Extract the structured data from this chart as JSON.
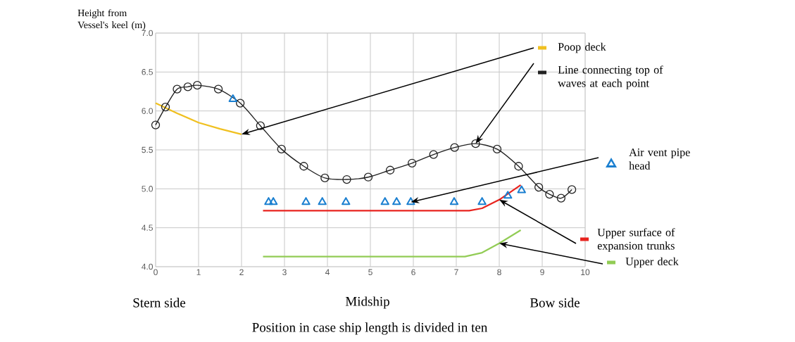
{
  "chart_data": {
    "type": "line",
    "ylabel": "Height from Vessel's keel (m)",
    "xlabel": "Position in case ship length is divided in ten",
    "xlim": [
      0,
      10
    ],
    "ylim": [
      4,
      7
    ],
    "xticks": [
      0,
      1,
      2,
      3,
      4,
      5,
      6,
      7,
      8,
      9,
      10
    ],
    "yticks": [
      {
        "value": 4,
        "label": "4.0"
      },
      {
        "value": 4.5,
        "label": "4.5"
      },
      {
        "value": 5,
        "label": "5.0"
      },
      {
        "value": 5.5,
        "label": "5.5"
      },
      {
        "value": 6,
        "label": "6.0"
      },
      {
        "value": 6.5,
        "label": "6.5"
      },
      {
        "value": 7,
        "label": "7.0"
      }
    ],
    "grid": true,
    "legend": "right",
    "series": [
      {
        "name": "Poop deck",
        "color": "#f0c020",
        "x": [
          0,
          0.5,
          1,
          1.5,
          2
        ],
        "values": [
          6.1,
          5.97,
          5.85,
          5.77,
          5.7
        ]
      },
      {
        "name": "Line connecting top of waves at each point",
        "color": "#222222",
        "marker": "circle",
        "x": [
          0,
          0.23,
          0.5,
          0.75,
          0.97,
          1.46,
          1.97,
          2.44,
          2.93,
          3.45,
          3.94,
          4.45,
          4.95,
          5.46,
          5.97,
          6.47,
          6.96,
          7.45,
          7.95,
          8.45,
          8.92,
          9.17,
          9.44,
          9.69
        ],
        "values": [
          5.82,
          6.05,
          6.28,
          6.31,
          6.33,
          6.28,
          6.1,
          5.81,
          5.51,
          5.29,
          5.14,
          5.12,
          5.15,
          5.24,
          5.33,
          5.44,
          5.53,
          5.58,
          5.51,
          5.29,
          5.02,
          4.93,
          4.88,
          4.99
        ]
      },
      {
        "name": "Air vent pipe head",
        "type": "scatter",
        "marker": "triangle",
        "color": "#1a7fd0",
        "x": [
          1.8,
          2.63,
          2.74,
          3.5,
          3.88,
          4.43,
          5.34,
          5.61,
          5.94,
          6.95,
          7.6,
          8.2,
          8.52
        ],
        "values": [
          6.15,
          4.83,
          4.83,
          4.83,
          4.83,
          4.83,
          4.83,
          4.83,
          4.83,
          4.83,
          4.83,
          4.91,
          4.98
        ]
      },
      {
        "name": "Upper surface of expansion trunks",
        "color": "#e8231e",
        "x": [
          2.5,
          7.3,
          7.6,
          8.0,
          8.5
        ],
        "values": [
          4.72,
          4.72,
          4.75,
          4.86,
          5.05
        ]
      },
      {
        "name": "Upper deck",
        "color": "#92cc55",
        "x": [
          2.5,
          7.2,
          7.6,
          8.0,
          8.5
        ],
        "values": [
          4.13,
          4.13,
          4.18,
          4.3,
          4.47
        ]
      }
    ],
    "annotations": [
      "Stern side",
      "Midship",
      "Bow side"
    ]
  }
}
